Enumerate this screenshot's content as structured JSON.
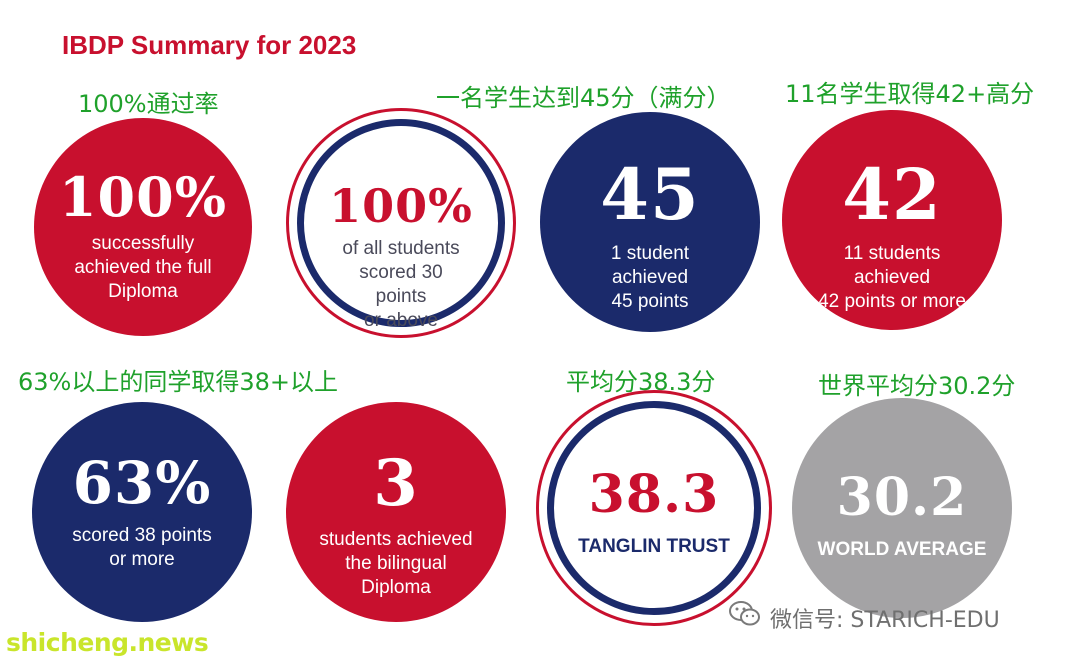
{
  "title": "IBDP Summary for 2023",
  "labels_cn": {
    "pass_rate": "100%通过率",
    "full_score": "一名学生达到45分（满分）",
    "eleven_42": "11名学生取得42+高分",
    "sixty_three": "63%以上的同学取得38+以上",
    "average": "平均分38.3分",
    "world_average": "世界平均分30.2分"
  },
  "circles": [
    {
      "value": "100%",
      "caption_lines": [
        "successfully",
        "achieved the full",
        "Diploma"
      ],
      "color": "#c8102e"
    },
    {
      "value": "100%",
      "caption_lines": [
        "of all students",
        "scored 30",
        "points",
        "or above"
      ],
      "color": "#ffffff"
    },
    {
      "value": "45",
      "caption_lines": [
        "1 student",
        "achieved",
        "45 points"
      ],
      "color": "#1b2a6b"
    },
    {
      "value": "42",
      "caption_lines": [
        "11 students",
        "achieved",
        "42 points or more"
      ],
      "color": "#c8102e"
    },
    {
      "value": "63%",
      "caption_lines": [
        "scored 38 points",
        "or more"
      ],
      "color": "#1b2a6b"
    },
    {
      "value": "3",
      "caption_lines": [
        "students achieved",
        "the  bilingual",
        "Diploma"
      ],
      "color": "#c8102e"
    },
    {
      "value": "38.3",
      "caption_lines": [
        "TANGLIN TRUST"
      ],
      "color": "#ffffff"
    },
    {
      "value": "30.2",
      "caption_lines": [
        "WORLD AVERAGE"
      ],
      "color": "#a4a3a5"
    }
  ],
  "watermark": "微信号: STARICH-EDU",
  "footer": "shicheng.news",
  "icons": {
    "wechat": "wechat-icon"
  },
  "colors": {
    "red": "#c8102e",
    "navy": "#1b2a6b",
    "gray": "#a4a3a5",
    "green_text": "#1fa12b"
  }
}
